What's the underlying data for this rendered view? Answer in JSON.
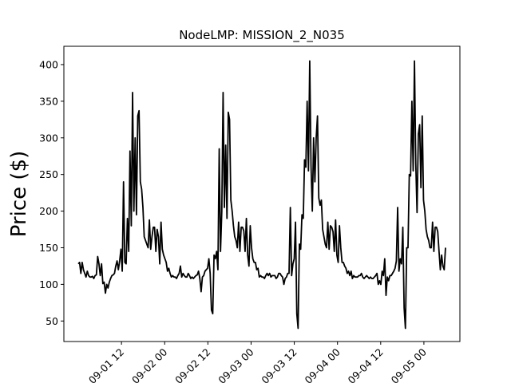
{
  "chart_data": {
    "type": "line",
    "title": "NodeLMP: MISSION_2_N035",
    "xlabel": "",
    "ylabel": "Price ($)",
    "x_unit": "hour",
    "x_start": "2017-09-01 00:00",
    "x_end": "2017-09-05 06:00",
    "xlim": [
      "2017-08-31 20:00",
      "2017-09-05 10:00"
    ],
    "ylim": [
      22,
      425
    ],
    "grid": false,
    "legend": "none",
    "line_color": "#000000",
    "x_ticks": [
      {
        "value": "2017-09-01 12:00",
        "label": "09-01 12"
      },
      {
        "value": "2017-09-02 00:00",
        "label": "09-02 00"
      },
      {
        "value": "2017-09-02 12:00",
        "label": "09-02 12"
      },
      {
        "value": "2017-09-03 00:00",
        "label": "09-03 00"
      },
      {
        "value": "2017-09-03 12:00",
        "label": "09-03 12"
      },
      {
        "value": "2017-09-04 00:00",
        "label": "09-04 00"
      },
      {
        "value": "2017-09-04 12:00",
        "label": "09-04 12"
      },
      {
        "value": "2017-09-05 00:00",
        "label": "09-05 00"
      }
    ],
    "y_ticks": [
      {
        "value": 50,
        "label": "50"
      },
      {
        "value": 100,
        "label": "100"
      },
      {
        "value": 150,
        "label": "150"
      },
      {
        "value": 200,
        "label": "200"
      },
      {
        "value": 250,
        "label": "250"
      },
      {
        "value": 300,
        "label": "300"
      },
      {
        "value": 350,
        "label": "350"
      },
      {
        "value": 400,
        "label": "400"
      }
    ],
    "series": [
      {
        "values": [
          128,
          130,
          115,
          130,
          120,
          115,
          110,
          118,
          112,
          110,
          110,
          111,
          108,
          112,
          113,
          138,
          128,
          112,
          128,
          101,
          103,
          88,
          100,
          95,
          103,
          108,
          112,
          113,
          115,
          125,
          132,
          120,
          132,
          148,
          118,
          240,
          130,
          128,
          190,
          145,
          282,
          180,
          362,
          200,
          300,
          195,
          330,
          337,
          240,
          230,
          205,
          165,
          160,
          155,
          150,
          188,
          148,
          165,
          178,
          178,
          145,
          175,
          165,
          128,
          185,
          148,
          140,
          135,
          130,
          118,
          122,
          115,
          110,
          112,
          110,
          110,
          108,
          112,
          115,
          125,
          110,
          115,
          112,
          110,
          110,
          115,
          112,
          108,
          110,
          108,
          110,
          112,
          113,
          118,
          108,
          90,
          110,
          112,
          118,
          120,
          122,
          135,
          115,
          65,
          60,
          140,
          135,
          145,
          120,
          285,
          145,
          200,
          362,
          205,
          290,
          190,
          335,
          325,
          215,
          200,
          180,
          165,
          160,
          150,
          185,
          145,
          178,
          178,
          173,
          145,
          190,
          140,
          125,
          180,
          150,
          135,
          130,
          130,
          120,
          122,
          110,
          112,
          110,
          110,
          108,
          112,
          115,
          112,
          115,
          110,
          112,
          112,
          112,
          108,
          110,
          115,
          115,
          112,
          110,
          100,
          108,
          110,
          115,
          115,
          205,
          112,
          128,
          135,
          185,
          60,
          40,
          155,
          148,
          195,
          190,
          270,
          260,
          350,
          255,
          405,
          262,
          200,
          300,
          240,
          300,
          330,
          218,
          208,
          215,
          175,
          165,
          155,
          150,
          185,
          148,
          180,
          178,
          172,
          145,
          188,
          140,
          130,
          180,
          150,
          130,
          130,
          125,
          122,
          115,
          118,
          112,
          118,
          108,
          112,
          110,
          110,
          110,
          112,
          112,
          115,
          110,
          108,
          110,
          112,
          110,
          108,
          110,
          108,
          108,
          110,
          112,
          115,
          100,
          105,
          100,
          118,
          112,
          135,
          85,
          110,
          105,
          112,
          112,
          115,
          118,
          122,
          132,
          205,
          118,
          135,
          128,
          178,
          68,
          40,
          150,
          150,
          250,
          248,
          350,
          255,
          405,
          265,
          198,
          305,
          318,
          232,
          330,
          215,
          200,
          175,
          165,
          160,
          150,
          150,
          185,
          145,
          178,
          178,
          172,
          145,
          120,
          140,
          125,
          120,
          150
        ]
      }
    ]
  }
}
